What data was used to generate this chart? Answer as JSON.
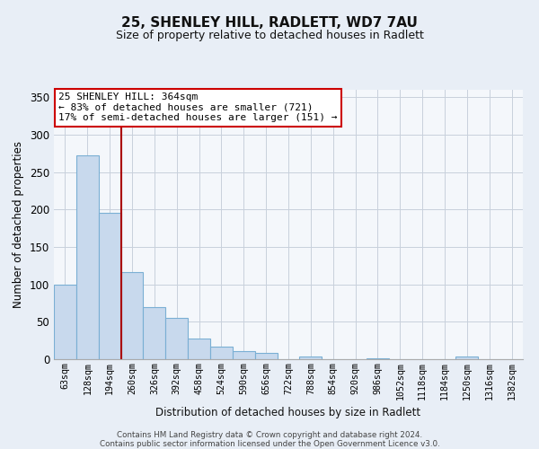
{
  "title": "25, SHENLEY HILL, RADLETT, WD7 7AU",
  "subtitle": "Size of property relative to detached houses in Radlett",
  "xlabel": "Distribution of detached houses by size in Radlett",
  "ylabel": "Number of detached properties",
  "bar_labels": [
    "63sqm",
    "128sqm",
    "194sqm",
    "260sqm",
    "326sqm",
    "392sqm",
    "458sqm",
    "524sqm",
    "590sqm",
    "656sqm",
    "722sqm",
    "788sqm",
    "854sqm",
    "920sqm",
    "986sqm",
    "1052sqm",
    "1118sqm",
    "1184sqm",
    "1250sqm",
    "1316sqm",
    "1382sqm"
  ],
  "bar_values": [
    100,
    272,
    196,
    116,
    70,
    55,
    28,
    17,
    11,
    8,
    0,
    4,
    0,
    0,
    1,
    0,
    0,
    0,
    4,
    0,
    0
  ],
  "bar_color": "#c8d9ed",
  "bar_edge_color": "#7aafd4",
  "vline_x": 2.5,
  "vline_color": "#aa0000",
  "annotation_text": "25 SHENLEY HILL: 364sqm\n← 83% of detached houses are smaller (721)\n17% of semi-detached houses are larger (151) →",
  "annotation_box_color": "#ffffff",
  "annotation_box_edge": "#cc0000",
  "ylim": [
    0,
    360
  ],
  "yticks": [
    0,
    50,
    100,
    150,
    200,
    250,
    300,
    350
  ],
  "footer_line1": "Contains HM Land Registry data © Crown copyright and database right 2024.",
  "footer_line2": "Contains public sector information licensed under the Open Government Licence v3.0.",
  "background_color": "#e8eef6",
  "plot_bg_color": "#f4f7fb"
}
